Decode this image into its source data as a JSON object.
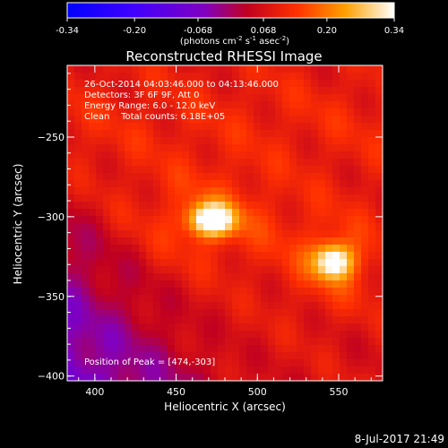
{
  "chart_data": {
    "type": "heatmap",
    "title": "Reconstructed RHESSI Image",
    "xlabel": "Heliocentric X (arcsec)",
    "ylabel": "Heliocentric Y (arcsec)",
    "xlim": [
      383,
      577
    ],
    "ylim": [
      -403,
      -205
    ],
    "x_ticks": [
      400,
      450,
      500,
      550
    ],
    "y_ticks": [
      -250,
      -300,
      -350,
      -400
    ],
    "colorbar": {
      "min": -0.34,
      "max": 0.34,
      "ticks": [
        "-0.34",
        "-0.20",
        "-0.068",
        "0.068",
        "0.20",
        "0.34"
      ],
      "label": "(photons cm",
      "label_sup1": "-2",
      "label_mid": " s",
      "label_sup2": "-1",
      "label_mid2": " asec",
      "label_sup3": "-2",
      "label_end": ")"
    },
    "annotations": {
      "time": "26-Oct-2014 04:03:46.000 to 04:13:46.000",
      "detectors": "Detectors: 3F 6F 9F, Att 0",
      "energy": "Energy Range: 6.0 - 12.0 keV",
      "clean": "Clean    Total counts: 6.18E+05",
      "peak": "Position of Peak = [474,-303]"
    },
    "sources": [
      {
        "x": 472,
        "y": -302,
        "peak": 0.34
      },
      {
        "x": 547,
        "y": -328,
        "peak": 0.3
      }
    ]
  },
  "footer_date": "8-Jul-2017 21:49"
}
